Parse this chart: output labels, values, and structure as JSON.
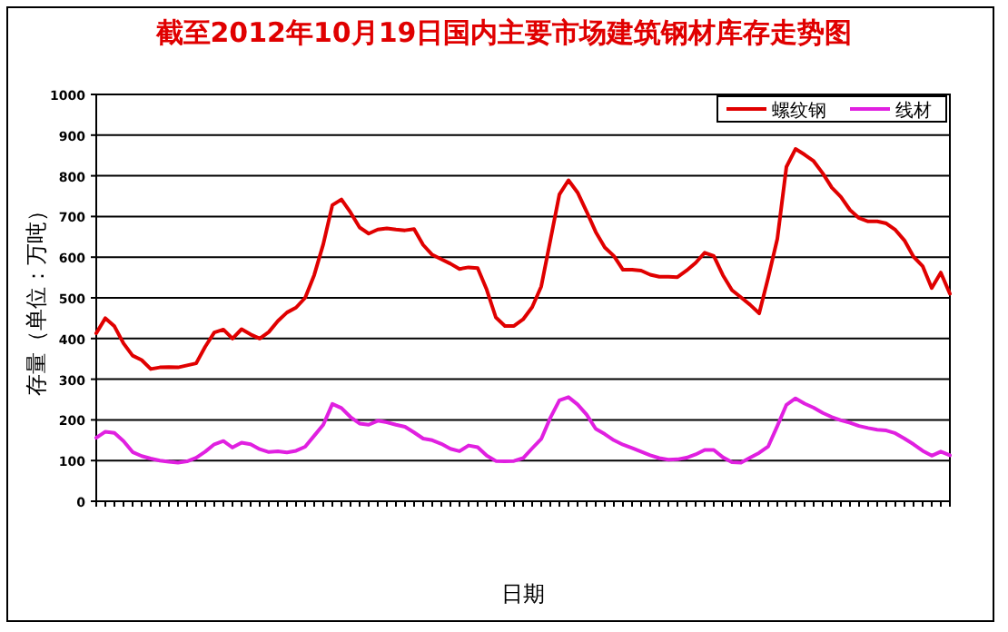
{
  "chart_data": {
    "type": "line",
    "title": "截至2012年10月19日国内主要市场建筑钢材库存走势图",
    "xlabel": "日期",
    "ylabel": "存量（单位：万吨）",
    "categories": [
      null,
      null,
      null,
      null,
      null,
      null,
      null,
      null,
      null,
      null,
      null,
      null,
      null,
      null,
      null,
      null,
      null,
      null,
      null,
      null,
      null,
      null,
      null,
      null,
      null,
      null,
      null,
      null,
      null,
      null,
      null,
      null,
      null,
      null,
      null,
      null,
      null,
      null,
      null,
      null,
      null,
      null,
      null,
      null,
      null,
      null,
      null,
      null,
      null,
      null,
      null,
      null,
      null,
      null,
      null,
      null,
      null,
      null,
      null,
      null,
      null,
      null,
      null,
      null,
      null,
      null,
      null,
      null,
      null,
      null,
      null,
      null,
      null,
      null,
      null,
      null,
      null,
      null,
      null,
      null,
      null,
      null,
      null,
      null,
      null,
      null,
      null,
      null,
      null,
      null,
      null,
      null,
      null,
      null,
      null
    ],
    "series": [
      {
        "name": "螺纹钢",
        "color": "#e00000",
        "values": [
          413,
          450,
          430,
          388,
          358,
          347,
          325,
          329,
          330,
          329,
          334,
          339,
          380,
          415,
          422,
          400,
          423,
          410,
          400,
          416,
          443,
          464,
          476,
          500,
          556,
          632,
          728,
          742,
          710,
          673,
          658,
          668,
          671,
          668,
          666,
          669,
          630,
          606,
          595,
          584,
          571,
          575,
          573,
          520,
          452,
          431,
          431,
          447,
          477,
          528,
          641,
          754,
          789,
          759,
          712,
          662,
          624,
          603,
          569,
          569,
          567,
          557,
          552,
          552,
          551,
          567,
          586,
          611,
          603,
          556,
          519,
          501,
          483,
          462,
          550,
          645,
          822,
          866,
          852,
          836,
          806,
          771,
          748,
          716,
          696,
          688,
          688,
          683,
          667,
          641,
          601,
          578,
          524,
          562,
          510
        ]
      },
      {
        "name": "线材",
        "color": "#e020e0",
        "values": [
          156,
          171,
          168,
          148,
          121,
          111,
          105,
          100,
          97,
          95,
          98,
          107,
          122,
          140,
          148,
          132,
          144,
          140,
          128,
          121,
          123,
          120,
          124,
          134,
          161,
          188,
          239,
          229,
          207,
          191,
          188,
          198,
          194,
          188,
          183,
          169,
          154,
          150,
          141,
          129,
          123,
          137,
          133,
          112,
          99,
          98,
          99,
          106,
          130,
          153,
          205,
          248,
          256,
          238,
          213,
          178,
          165,
          150,
          139,
          131,
          122,
          113,
          106,
          102,
          103,
          107,
          115,
          126,
          126,
          108,
          96,
          95,
          107,
          119,
          135,
          185,
          237,
          253,
          240,
          230,
          217,
          207,
          199,
          193,
          185,
          180,
          176,
          174,
          167,
          154,
          140,
          124,
          112,
          122,
          113
        ]
      }
    ],
    "ylim": [
      0,
      1000
    ],
    "yticks": [
      0,
      100,
      200,
      300,
      400,
      500,
      600,
      700,
      800,
      900,
      1000
    ],
    "grid": "y",
    "legend": "top right"
  }
}
